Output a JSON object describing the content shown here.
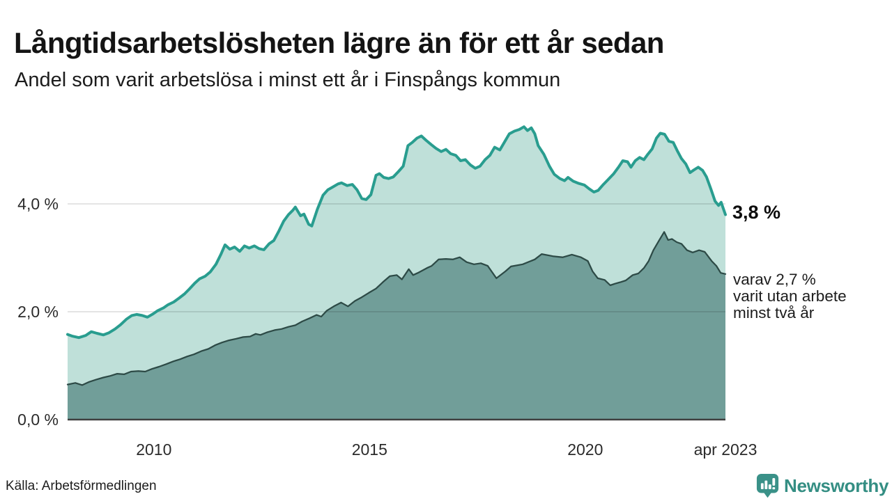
{
  "header": {
    "title": "Långtidsarbetslösheten lägre än för ett år sedan",
    "subtitle": "Andel som varit arbetslösa i minst ett år i Finspångs kommun"
  },
  "annotations": {
    "latest_value": "3,8 %",
    "secondary_lines": [
      "varav 2,7 %",
      "varit utan arbete",
      "minst två år"
    ]
  },
  "footer": {
    "source": "Källa: Arbetsförmedlingen",
    "brand": "Newsworthy",
    "brand_icon": "newsworthy-pin-barchart-icon",
    "brand_color": "#348E83"
  },
  "chart_data": {
    "type": "area",
    "title": "Långtidsarbetslösheten lägre än för ett år sedan",
    "subtitle": "Andel som varit arbetslösa i minst ett år i Finspångs kommun",
    "x_domain": [
      2008.0,
      2023.25
    ],
    "y_domain": [
      0,
      5.6
    ],
    "grid": "horizontal-only",
    "legend_position": "right-edge-annotations",
    "y_ticks": [
      {
        "label": "0,0 %",
        "value": 0
      },
      {
        "label": "2,0 %",
        "value": 2
      },
      {
        "label": "4,0 %",
        "value": 4
      }
    ],
    "x_ticks": [
      {
        "label": "2010",
        "year": 2010
      },
      {
        "label": "2015",
        "year": 2015
      },
      {
        "label": "2020",
        "year": 2020
      },
      {
        "label": "apr 2023",
        "year": 2023.25
      }
    ],
    "series": [
      {
        "name": "Andel arbetslösa minst ett år",
        "end_value_label": "3,8 %",
        "stroke": "#299D8F",
        "stroke_width": 4,
        "fill": "#BFE0D9",
        "points": [
          [
            2008.0,
            1.58
          ],
          [
            2008.1,
            1.55
          ],
          [
            2008.26,
            1.52
          ],
          [
            2008.42,
            1.56
          ],
          [
            2008.55,
            1.63
          ],
          [
            2008.68,
            1.6
          ],
          [
            2008.83,
            1.57
          ],
          [
            2008.96,
            1.61
          ],
          [
            2009.1,
            1.68
          ],
          [
            2009.23,
            1.76
          ],
          [
            2009.36,
            1.86
          ],
          [
            2009.49,
            1.93
          ],
          [
            2009.6,
            1.95
          ],
          [
            2009.73,
            1.93
          ],
          [
            2009.85,
            1.9
          ],
          [
            2009.98,
            1.96
          ],
          [
            2010.09,
            2.02
          ],
          [
            2010.22,
            2.07
          ],
          [
            2010.33,
            2.13
          ],
          [
            2010.46,
            2.18
          ],
          [
            2010.58,
            2.25
          ],
          [
            2010.71,
            2.33
          ],
          [
            2010.82,
            2.42
          ],
          [
            2010.95,
            2.53
          ],
          [
            2011.06,
            2.61
          ],
          [
            2011.19,
            2.66
          ],
          [
            2011.31,
            2.74
          ],
          [
            2011.44,
            2.88
          ],
          [
            2011.55,
            3.06
          ],
          [
            2011.65,
            3.24
          ],
          [
            2011.76,
            3.16
          ],
          [
            2011.87,
            3.2
          ],
          [
            2011.99,
            3.12
          ],
          [
            2012.1,
            3.22
          ],
          [
            2012.21,
            3.18
          ],
          [
            2012.33,
            3.22
          ],
          [
            2012.44,
            3.17
          ],
          [
            2012.55,
            3.15
          ],
          [
            2012.67,
            3.26
          ],
          [
            2012.78,
            3.32
          ],
          [
            2012.9,
            3.5
          ],
          [
            2013.01,
            3.68
          ],
          [
            2013.12,
            3.8
          ],
          [
            2013.22,
            3.88
          ],
          [
            2013.28,
            3.94
          ],
          [
            2013.4,
            3.78
          ],
          [
            2013.48,
            3.81
          ],
          [
            2013.59,
            3.62
          ],
          [
            2013.66,
            3.59
          ],
          [
            2013.79,
            3.9
          ],
          [
            2013.92,
            4.16
          ],
          [
            2014.03,
            4.26
          ],
          [
            2014.14,
            4.31
          ],
          [
            2014.27,
            4.37
          ],
          [
            2014.35,
            4.39
          ],
          [
            2014.48,
            4.34
          ],
          [
            2014.6,
            4.36
          ],
          [
            2014.71,
            4.26
          ],
          [
            2014.82,
            4.1
          ],
          [
            2014.92,
            4.08
          ],
          [
            2015.03,
            4.17
          ],
          [
            2015.15,
            4.53
          ],
          [
            2015.23,
            4.56
          ],
          [
            2015.33,
            4.49
          ],
          [
            2015.44,
            4.47
          ],
          [
            2015.55,
            4.5
          ],
          [
            2015.67,
            4.6
          ],
          [
            2015.78,
            4.7
          ],
          [
            2015.89,
            5.08
          ],
          [
            2015.99,
            5.14
          ],
          [
            2016.1,
            5.22
          ],
          [
            2016.2,
            5.26
          ],
          [
            2016.31,
            5.18
          ],
          [
            2016.43,
            5.1
          ],
          [
            2016.54,
            5.03
          ],
          [
            2016.66,
            4.97
          ],
          [
            2016.77,
            5.01
          ],
          [
            2016.88,
            4.93
          ],
          [
            2017.0,
            4.9
          ],
          [
            2017.11,
            4.8
          ],
          [
            2017.22,
            4.82
          ],
          [
            2017.34,
            4.72
          ],
          [
            2017.45,
            4.66
          ],
          [
            2017.56,
            4.7
          ],
          [
            2017.68,
            4.82
          ],
          [
            2017.79,
            4.9
          ],
          [
            2017.9,
            5.05
          ],
          [
            2018.02,
            5.0
          ],
          [
            2018.13,
            5.15
          ],
          [
            2018.24,
            5.3
          ],
          [
            2018.36,
            5.35
          ],
          [
            2018.47,
            5.38
          ],
          [
            2018.58,
            5.43
          ],
          [
            2018.66,
            5.36
          ],
          [
            2018.75,
            5.41
          ],
          [
            2018.83,
            5.3
          ],
          [
            2018.91,
            5.08
          ],
          [
            2019.04,
            4.92
          ],
          [
            2019.17,
            4.7
          ],
          [
            2019.28,
            4.55
          ],
          [
            2019.41,
            4.47
          ],
          [
            2019.52,
            4.43
          ],
          [
            2019.6,
            4.49
          ],
          [
            2019.72,
            4.42
          ],
          [
            2019.85,
            4.38
          ],
          [
            2019.98,
            4.35
          ],
          [
            2020.09,
            4.28
          ],
          [
            2020.2,
            4.22
          ],
          [
            2020.3,
            4.25
          ],
          [
            2020.42,
            4.36
          ],
          [
            2020.53,
            4.45
          ],
          [
            2020.66,
            4.56
          ],
          [
            2020.77,
            4.68
          ],
          [
            2020.87,
            4.8
          ],
          [
            2020.98,
            4.78
          ],
          [
            2021.06,
            4.68
          ],
          [
            2021.16,
            4.8
          ],
          [
            2021.26,
            4.86
          ],
          [
            2021.36,
            4.82
          ],
          [
            2021.45,
            4.92
          ],
          [
            2021.55,
            5.02
          ],
          [
            2021.65,
            5.22
          ],
          [
            2021.74,
            5.31
          ],
          [
            2021.84,
            5.29
          ],
          [
            2021.94,
            5.16
          ],
          [
            2022.04,
            5.14
          ],
          [
            2022.13,
            4.99
          ],
          [
            2022.23,
            4.84
          ],
          [
            2022.33,
            4.74
          ],
          [
            2022.43,
            4.58
          ],
          [
            2022.52,
            4.63
          ],
          [
            2022.62,
            4.68
          ],
          [
            2022.72,
            4.62
          ],
          [
            2022.81,
            4.5
          ],
          [
            2022.91,
            4.28
          ],
          [
            2023.01,
            4.05
          ],
          [
            2023.09,
            3.97
          ],
          [
            2023.15,
            4.03
          ],
          [
            2023.25,
            3.8
          ]
        ]
      },
      {
        "name": "varav utan arbete minst två år",
        "end_value_label": "2,7 %",
        "stroke": "#2D4A46",
        "stroke_width": 2.25,
        "fill": "#719E99",
        "points": [
          [
            2008.0,
            0.65
          ],
          [
            2008.18,
            0.68
          ],
          [
            2008.34,
            0.64
          ],
          [
            2008.5,
            0.7
          ],
          [
            2008.66,
            0.74
          ],
          [
            2008.83,
            0.78
          ],
          [
            2008.99,
            0.81
          ],
          [
            2009.15,
            0.85
          ],
          [
            2009.31,
            0.84
          ],
          [
            2009.47,
            0.89
          ],
          [
            2009.64,
            0.9
          ],
          [
            2009.8,
            0.89
          ],
          [
            2009.96,
            0.94
          ],
          [
            2010.12,
            0.98
          ],
          [
            2010.29,
            1.03
          ],
          [
            2010.45,
            1.08
          ],
          [
            2010.61,
            1.12
          ],
          [
            2010.77,
            1.17
          ],
          [
            2010.93,
            1.21
          ],
          [
            2011.1,
            1.27
          ],
          [
            2011.26,
            1.31
          ],
          [
            2011.42,
            1.38
          ],
          [
            2011.58,
            1.43
          ],
          [
            2011.74,
            1.47
          ],
          [
            2011.91,
            1.5
          ],
          [
            2012.07,
            1.53
          ],
          [
            2012.23,
            1.54
          ],
          [
            2012.36,
            1.59
          ],
          [
            2012.47,
            1.57
          ],
          [
            2012.63,
            1.62
          ],
          [
            2012.8,
            1.66
          ],
          [
            2012.96,
            1.68
          ],
          [
            2013.12,
            1.72
          ],
          [
            2013.28,
            1.75
          ],
          [
            2013.44,
            1.82
          ],
          [
            2013.61,
            1.88
          ],
          [
            2013.77,
            1.94
          ],
          [
            2013.88,
            1.91
          ],
          [
            2014.01,
            2.02
          ],
          [
            2014.17,
            2.1
          ],
          [
            2014.34,
            2.17
          ],
          [
            2014.5,
            2.1
          ],
          [
            2014.66,
            2.2
          ],
          [
            2014.82,
            2.27
          ],
          [
            2014.98,
            2.35
          ],
          [
            2015.15,
            2.43
          ],
          [
            2015.31,
            2.55
          ],
          [
            2015.47,
            2.66
          ],
          [
            2015.63,
            2.68
          ],
          [
            2015.75,
            2.6
          ],
          [
            2015.91,
            2.79
          ],
          [
            2016.01,
            2.68
          ],
          [
            2016.12,
            2.72
          ],
          [
            2016.33,
            2.81
          ],
          [
            2016.44,
            2.85
          ],
          [
            2016.6,
            2.97
          ],
          [
            2016.77,
            2.98
          ],
          [
            2016.93,
            2.97
          ],
          [
            2017.09,
            3.01
          ],
          [
            2017.25,
            2.92
          ],
          [
            2017.42,
            2.88
          ],
          [
            2017.58,
            2.9
          ],
          [
            2017.74,
            2.85
          ],
          [
            2017.94,
            2.62
          ],
          [
            2018.15,
            2.75
          ],
          [
            2018.28,
            2.84
          ],
          [
            2018.55,
            2.88
          ],
          [
            2018.83,
            2.97
          ],
          [
            2018.99,
            3.07
          ],
          [
            2019.25,
            3.03
          ],
          [
            2019.48,
            3.01
          ],
          [
            2019.69,
            3.06
          ],
          [
            2019.9,
            3.01
          ],
          [
            2020.06,
            2.94
          ],
          [
            2020.17,
            2.75
          ],
          [
            2020.29,
            2.62
          ],
          [
            2020.45,
            2.59
          ],
          [
            2020.58,
            2.49
          ],
          [
            2020.69,
            2.52
          ],
          [
            2020.82,
            2.55
          ],
          [
            2020.94,
            2.58
          ],
          [
            2021.1,
            2.68
          ],
          [
            2021.23,
            2.71
          ],
          [
            2021.36,
            2.81
          ],
          [
            2021.47,
            2.94
          ],
          [
            2021.58,
            3.14
          ],
          [
            2021.71,
            3.32
          ],
          [
            2021.83,
            3.48
          ],
          [
            2021.92,
            3.33
          ],
          [
            2022.01,
            3.35
          ],
          [
            2022.12,
            3.29
          ],
          [
            2022.23,
            3.26
          ],
          [
            2022.36,
            3.14
          ],
          [
            2022.49,
            3.1
          ],
          [
            2022.64,
            3.14
          ],
          [
            2022.77,
            3.11
          ],
          [
            2022.93,
            2.94
          ],
          [
            2023.04,
            2.85
          ],
          [
            2023.14,
            2.72
          ],
          [
            2023.25,
            2.7
          ]
        ]
      }
    ],
    "style": {
      "grid_color": "rgba(0,0,0,0.14)",
      "baseline_color": "#3F3F3F"
    }
  }
}
